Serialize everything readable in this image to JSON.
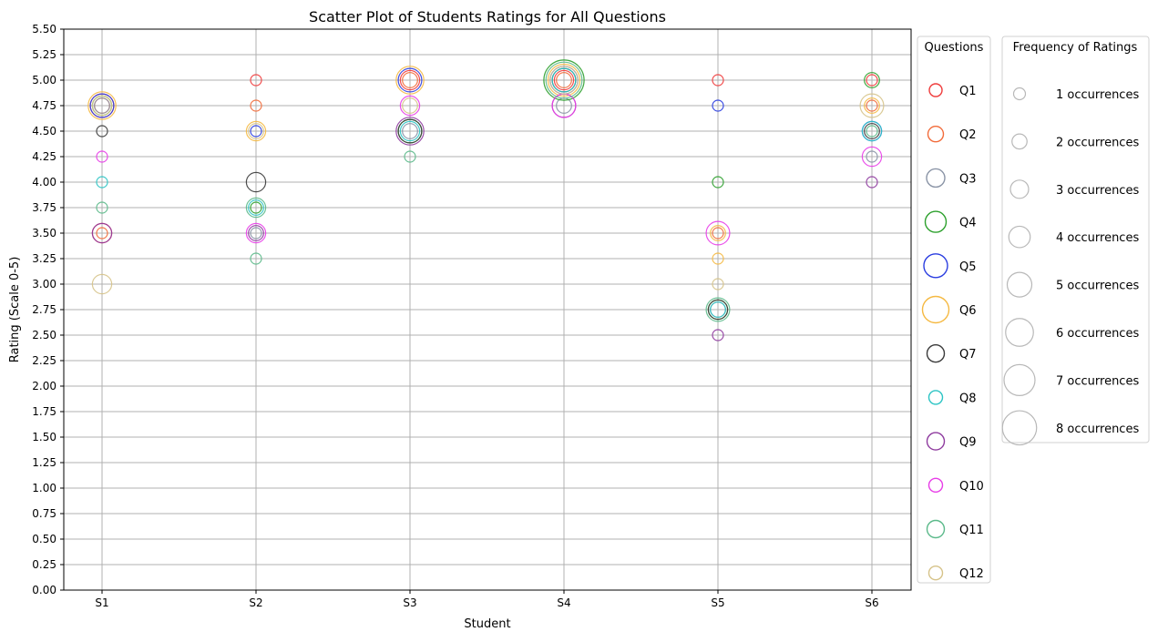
{
  "chart_data": {
    "type": "scatter",
    "title": "Scatter Plot of Students Ratings for All Questions",
    "xlabel": "Student",
    "ylabel": "Rating (Scale 0-5)",
    "ylim": [
      0,
      5.5
    ],
    "y_ticks": [
      "0.00",
      "0.25",
      "0.50",
      "0.75",
      "1.00",
      "1.25",
      "1.50",
      "1.75",
      "2.00",
      "2.25",
      "2.50",
      "2.75",
      "3.00",
      "3.25",
      "3.50",
      "3.75",
      "4.00",
      "4.25",
      "4.50",
      "4.75",
      "5.00",
      "5.25",
      "5.50"
    ],
    "categories": [
      "S1",
      "S2",
      "S3",
      "S4",
      "S5",
      "S6"
    ],
    "grid": true,
    "legend_questions_title": "Questions",
    "legend_frequency_title": "Frequency of Ratings",
    "size_legend": [
      {
        "count": 1,
        "label": "1 occurrences"
      },
      {
        "count": 2,
        "label": "2 occurrences"
      },
      {
        "count": 3,
        "label": "3 occurrences"
      },
      {
        "count": 4,
        "label": "4 occurrences"
      },
      {
        "count": 5,
        "label": "5 occurrences"
      },
      {
        "count": 6,
        "label": "6 occurrences"
      },
      {
        "count": 7,
        "label": "7 occurrences"
      },
      {
        "count": 8,
        "label": "8 occurrences"
      }
    ],
    "series": [
      {
        "name": "Q1",
        "color": "#ef3b3b",
        "points": [
          {
            "x": "S1",
            "y": 4.75,
            "n": 4
          },
          {
            "x": "S1",
            "y": 3.5,
            "n": 3
          },
          {
            "x": "S2",
            "y": 5.0,
            "n": 1
          },
          {
            "x": "S3",
            "y": 5.0,
            "n": 3
          },
          {
            "x": "S4",
            "y": 5.0,
            "n": 3
          },
          {
            "x": "S5",
            "y": 5.0,
            "n": 1
          },
          {
            "x": "S6",
            "y": 5.0,
            "n": 1
          }
        ]
      },
      {
        "name": "Q2",
        "color": "#f26b3a",
        "points": [
          {
            "x": "S1",
            "y": 4.75,
            "n": 2
          },
          {
            "x": "S1",
            "y": 3.5,
            "n": 1
          },
          {
            "x": "S2",
            "y": 4.75,
            "n": 1
          },
          {
            "x": "S3",
            "y": 5.0,
            "n": 2
          },
          {
            "x": "S4",
            "y": 5.0,
            "n": 2
          },
          {
            "x": "S5",
            "y": 3.5,
            "n": 1
          },
          {
            "x": "S6",
            "y": 4.75,
            "n": 1
          }
        ]
      },
      {
        "name": "Q3",
        "color": "#8a94a6",
        "points": [
          {
            "x": "S1",
            "y": 4.75,
            "n": 2
          },
          {
            "x": "S2",
            "y": 3.5,
            "n": 1
          },
          {
            "x": "S3",
            "y": 4.5,
            "n": 2
          },
          {
            "x": "S4",
            "y": 4.75,
            "n": 2
          },
          {
            "x": "S5",
            "y": 2.75,
            "n": 2
          },
          {
            "x": "S6",
            "y": 4.25,
            "n": 1
          }
        ]
      },
      {
        "name": "Q4",
        "color": "#2ca02c",
        "points": [
          {
            "x": "S1",
            "y": 4.75,
            "n": 3
          },
          {
            "x": "S2",
            "y": 3.75,
            "n": 1
          },
          {
            "x": "S3",
            "y": 4.5,
            "n": 4
          },
          {
            "x": "S4",
            "y": 5.0,
            "n": 8
          },
          {
            "x": "S5",
            "y": 4.0,
            "n": 1
          },
          {
            "x": "S5",
            "y": 2.75,
            "n": 3
          },
          {
            "x": "S6",
            "y": 5.0,
            "n": 2
          }
        ]
      },
      {
        "name": "Q5",
        "color": "#2a3de0",
        "points": [
          {
            "x": "S1",
            "y": 4.75,
            "n": 4
          },
          {
            "x": "S2",
            "y": 4.5,
            "n": 1
          },
          {
            "x": "S3",
            "y": 5.0,
            "n": 4
          },
          {
            "x": "S4",
            "y": 5.0,
            "n": 5
          },
          {
            "x": "S5",
            "y": 4.75,
            "n": 1
          },
          {
            "x": "S6",
            "y": 4.5,
            "n": 3
          }
        ]
      },
      {
        "name": "Q6",
        "color": "#f5b942",
        "points": [
          {
            "x": "S1",
            "y": 4.75,
            "n": 5
          },
          {
            "x": "S2",
            "y": 4.5,
            "n": 3
          },
          {
            "x": "S3",
            "y": 5.0,
            "n": 5
          },
          {
            "x": "S4",
            "y": 5.0,
            "n": 6
          },
          {
            "x": "S5",
            "y": 3.5,
            "n": 2
          },
          {
            "x": "S5",
            "y": 3.25,
            "n": 1
          },
          {
            "x": "S6",
            "y": 4.75,
            "n": 2
          }
        ]
      },
      {
        "name": "Q7",
        "color": "#3a3a3a",
        "points": [
          {
            "x": "S1",
            "y": 4.5,
            "n": 1
          },
          {
            "x": "S2",
            "y": 4.0,
            "n": 3
          },
          {
            "x": "S3",
            "y": 4.5,
            "n": 4
          },
          {
            "x": "S4",
            "y": 5.0,
            "n": 4
          },
          {
            "x": "S5",
            "y": 2.75,
            "n": 3
          },
          {
            "x": "S6",
            "y": 4.5,
            "n": 2
          }
        ]
      },
      {
        "name": "Q8",
        "color": "#2bc4c4",
        "points": [
          {
            "x": "S1",
            "y": 4.0,
            "n": 1
          },
          {
            "x": "S2",
            "y": 3.75,
            "n": 2
          },
          {
            "x": "S3",
            "y": 4.5,
            "n": 3
          },
          {
            "x": "S4",
            "y": 5.0,
            "n": 4
          },
          {
            "x": "S5",
            "y": 2.75,
            "n": 2
          },
          {
            "x": "S6",
            "y": 4.5,
            "n": 3
          }
        ]
      },
      {
        "name": "Q9",
        "color": "#8e3a9e",
        "points": [
          {
            "x": "S1",
            "y": 3.5,
            "n": 3
          },
          {
            "x": "S2",
            "y": 3.5,
            "n": 2
          },
          {
            "x": "S3",
            "y": 4.5,
            "n": 5
          },
          {
            "x": "S4",
            "y": 4.75,
            "n": 4
          },
          {
            "x": "S5",
            "y": 2.5,
            "n": 1
          },
          {
            "x": "S6",
            "y": 4.0,
            "n": 1
          }
        ]
      },
      {
        "name": "Q10",
        "color": "#e83de8",
        "points": [
          {
            "x": "S1",
            "y": 4.25,
            "n": 1
          },
          {
            "x": "S2",
            "y": 3.5,
            "n": 3
          },
          {
            "x": "S3",
            "y": 4.75,
            "n": 3
          },
          {
            "x": "S4",
            "y": 4.75,
            "n": 4
          },
          {
            "x": "S5",
            "y": 3.5,
            "n": 4
          },
          {
            "x": "S6",
            "y": 4.25,
            "n": 3
          }
        ]
      },
      {
        "name": "Q11",
        "color": "#5bb98a",
        "points": [
          {
            "x": "S1",
            "y": 3.75,
            "n": 1
          },
          {
            "x": "S2",
            "y": 3.75,
            "n": 3
          },
          {
            "x": "S2",
            "y": 3.25,
            "n": 1
          },
          {
            "x": "S3",
            "y": 4.25,
            "n": 1
          },
          {
            "x": "S4",
            "y": 5.0,
            "n": 7
          },
          {
            "x": "S5",
            "y": 2.75,
            "n": 4
          },
          {
            "x": "S6",
            "y": 4.5,
            "n": 1
          }
        ]
      },
      {
        "name": "Q12",
        "color": "#d6c389",
        "points": [
          {
            "x": "S1",
            "y": 3.0,
            "n": 3
          },
          {
            "x": "S1",
            "y": 4.75,
            "n": 3
          },
          {
            "x": "S2",
            "y": 4.5,
            "n": 2
          },
          {
            "x": "S3",
            "y": 4.75,
            "n": 2
          },
          {
            "x": "S4",
            "y": 5.0,
            "n": 5
          },
          {
            "x": "S5",
            "y": 3.0,
            "n": 1
          },
          {
            "x": "S6",
            "y": 4.75,
            "n": 4
          }
        ]
      }
    ]
  }
}
